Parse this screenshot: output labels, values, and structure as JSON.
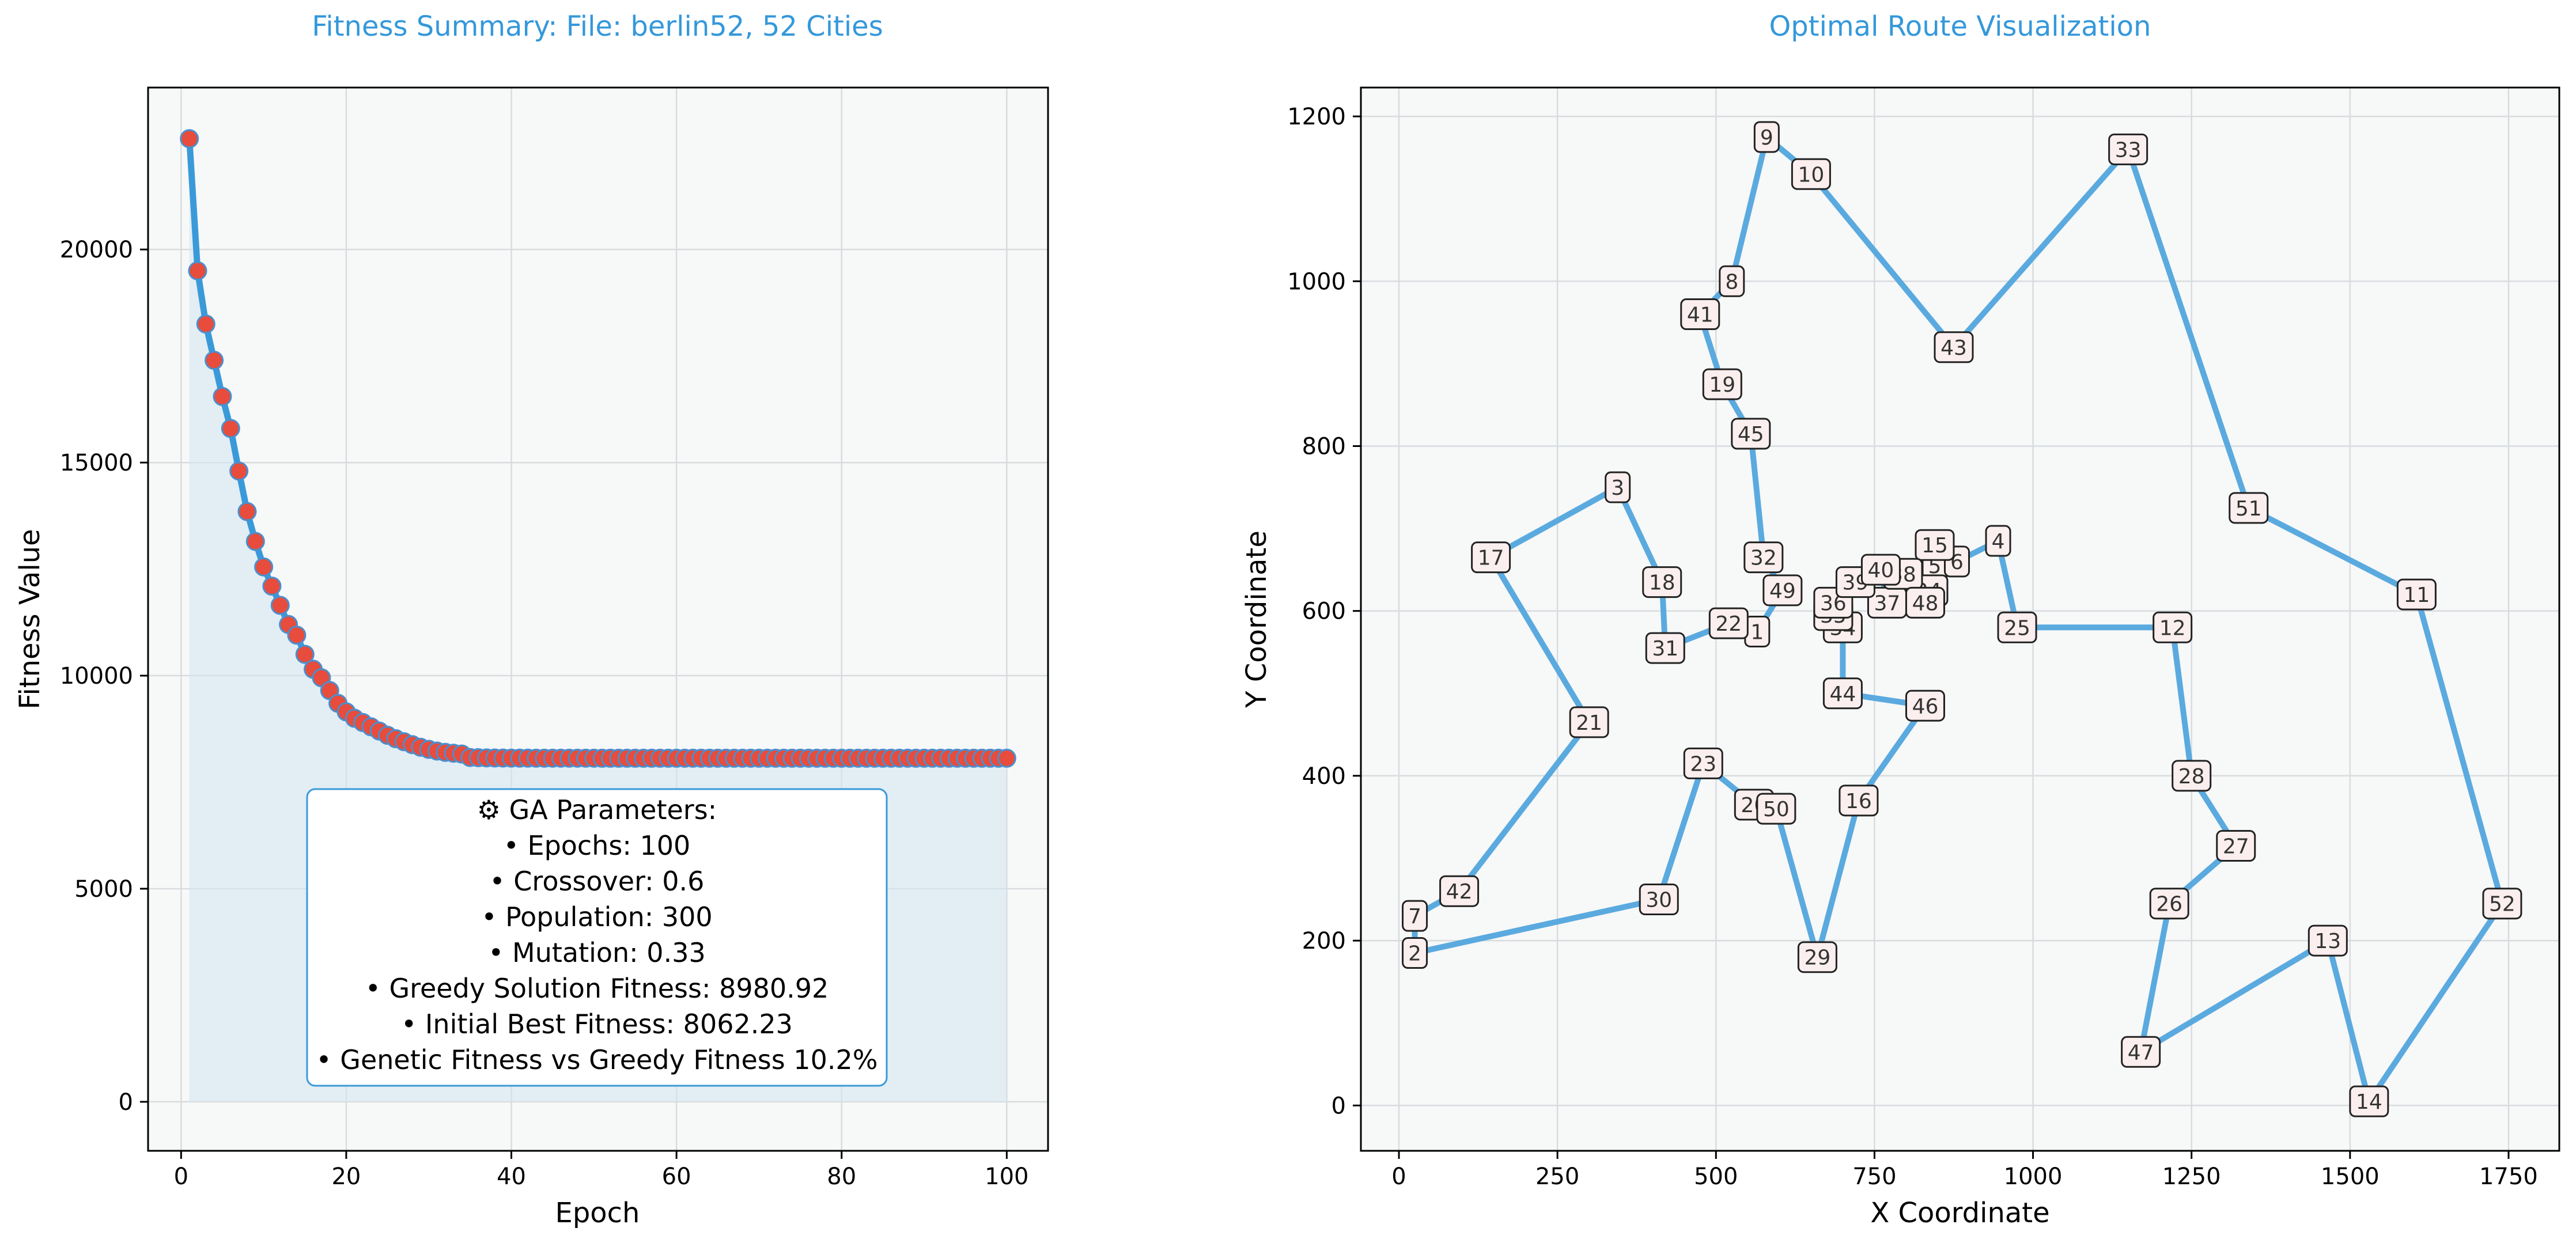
{
  "colors": {
    "title": "#3498db",
    "line": "#3a9ad9",
    "marker_fill": "#e74c3c",
    "marker_edge": "#4a8fcf",
    "area_fill": "#d4e6f1",
    "plot_bg": "#f7f8f8",
    "route": "#5aaadf",
    "param_border": "#3a9ad9",
    "city_label_bg": "#fbeeee"
  },
  "fitness_chart": {
    "title": "Fitness Summary: File: berlin52, 52 Cities",
    "xlabel": "Epoch",
    "ylabel": "Fitness Value",
    "xlim": [
      -4,
      105
    ],
    "ylim": [
      -1150,
      23800
    ],
    "xticks": [
      0,
      20,
      40,
      60,
      80,
      100
    ],
    "yticks": [
      0,
      5000,
      10000,
      15000,
      20000
    ],
    "grid": true,
    "params_title": "⚙ GA Parameters:",
    "params": [
      "• Epochs: 100",
      "• Crossover: 0.6",
      "• Population: 300",
      "• Mutation: 0.33",
      "• Greedy Solution Fitness: 8980.92",
      "• Initial Best Fitness: 8062.23",
      "• Genetic Fitness vs Greedy Fitness 10.2%"
    ]
  },
  "route_chart": {
    "title": "Optimal Route Visualization",
    "xlabel": "X Coordinate",
    "ylabel": "Y Coordinate",
    "xlim": [
      -60,
      1830
    ],
    "ylim": [
      -55,
      1235
    ],
    "xticks": [
      0,
      250,
      500,
      750,
      1000,
      1250,
      1500,
      1750
    ],
    "yticks": [
      0,
      200,
      400,
      600,
      800,
      1000,
      1200
    ],
    "grid": true
  },
  "chart_data": [
    {
      "type": "line",
      "title": "Fitness Summary: File: berlin52, 52 Cities",
      "xlabel": "Epoch",
      "ylabel": "Fitness Value",
      "xlim": [
        -4,
        105
      ],
      "ylim": [
        -1150,
        23800
      ],
      "grid": true,
      "x_start": 1,
      "values": [
        22600,
        19500,
        18250,
        17400,
        16550,
        15800,
        14800,
        13850,
        13150,
        12550,
        12100,
        11650,
        11200,
        10950,
        10500,
        10150,
        9950,
        9650,
        9350,
        9150,
        9000,
        8900,
        8800,
        8700,
        8600,
        8520,
        8450,
        8380,
        8320,
        8270,
        8230,
        8200,
        8180,
        8160,
        8080,
        8075,
        8070,
        8068,
        8066,
        8065,
        8064,
        8064,
        8063,
        8063,
        8063,
        8063,
        8062.5,
        8062.5,
        8062.4,
        8062.4,
        8062.3,
        8062.3,
        8062.3,
        8062.3,
        8062.3,
        8062.3,
        8062.3,
        8062.3,
        8062.3,
        8062.3,
        8062.23,
        8062.23,
        8062.23,
        8062.23,
        8062.23,
        8062.23,
        8062.23,
        8062.23,
        8062.23,
        8062.23,
        8062.23,
        8062.23,
        8062.23,
        8062.23,
        8062.23,
        8062.23,
        8062.23,
        8062.23,
        8062.23,
        8062.23,
        8062.23,
        8062.23,
        8062.23,
        8062.23,
        8062.23,
        8062.23,
        8062.23,
        8062.23,
        8062.23,
        8062.23,
        8062.23,
        8062.23,
        8062.23,
        8062.23,
        8062.23,
        8062.23,
        8062.23,
        8062.23,
        8062.23,
        8062.23
      ]
    },
    {
      "type": "route",
      "title": "Optimal Route Visualization",
      "xlabel": "X Coordinate",
      "ylabel": "Y Coordinate",
      "xlim": [
        -60,
        1830
      ],
      "ylim": [
        -55,
        1235
      ],
      "grid": true,
      "cities": {
        "1": [
          565,
          575
        ],
        "2": [
          25,
          185
        ],
        "3": [
          345,
          750
        ],
        "4": [
          945,
          685
        ],
        "5": [
          845,
          655
        ],
        "6": [
          880,
          660
        ],
        "7": [
          25,
          230
        ],
        "8": [
          525,
          1000
        ],
        "9": [
          580,
          1175
        ],
        "10": [
          650,
          1130
        ],
        "11": [
          1605,
          620
        ],
        "12": [
          1220,
          580
        ],
        "13": [
          1465,
          200
        ],
        "14": [
          1530,
          5
        ],
        "15": [
          845,
          680
        ],
        "16": [
          725,
          370
        ],
        "17": [
          145,
          665
        ],
        "18": [
          415,
          635
        ],
        "19": [
          510,
          875
        ],
        "20": [
          560,
          365
        ],
        "21": [
          300,
          465
        ],
        "22": [
          520,
          585
        ],
        "23": [
          480,
          415
        ],
        "24": [
          835,
          625
        ],
        "25": [
          975,
          580
        ],
        "26": [
          1215,
          245
        ],
        "27": [
          1320,
          315
        ],
        "28": [
          1250,
          400
        ],
        "29": [
          660,
          180
        ],
        "30": [
          410,
          250
        ],
        "31": [
          420,
          555
        ],
        "32": [
          575,
          665
        ],
        "33": [
          1150,
          1160
        ],
        "34": [
          700,
          580
        ],
        "35": [
          685,
          595
        ],
        "36": [
          685,
          610
        ],
        "37": [
          770,
          610
        ],
        "38": [
          795,
          645
        ],
        "39": [
          720,
          635
        ],
        "40": [
          760,
          650
        ],
        "41": [
          475,
          960
        ],
        "42": [
          95,
          260
        ],
        "43": [
          875,
          920
        ],
        "44": [
          700,
          500
        ],
        "45": [
          555,
          815
        ],
        "46": [
          830,
          485
        ],
        "47": [
          1170,
          65
        ],
        "48": [
          830,
          610
        ],
        "49": [
          605,
          625
        ],
        "50": [
          595,
          360
        ],
        "51": [
          1340,
          725
        ],
        "52": [
          1740,
          245
        ]
      },
      "route": [
        1,
        22,
        31,
        18,
        3,
        17,
        21,
        42,
        7,
        2,
        30,
        23,
        20,
        50,
        29,
        16,
        46,
        44,
        34,
        35,
        36,
        39,
        40,
        37,
        38,
        48,
        24,
        5,
        15,
        6,
        4,
        25,
        12,
        28,
        27,
        26,
        47,
        13,
        14,
        52,
        11,
        51,
        33,
        43,
        10,
        9,
        8,
        41,
        19,
        45,
        32,
        49,
        1
      ]
    }
  ]
}
